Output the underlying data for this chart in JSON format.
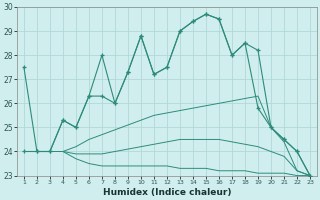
{
  "x": [
    1,
    2,
    3,
    4,
    5,
    6,
    7,
    8,
    9,
    10,
    11,
    12,
    13,
    14,
    15,
    16,
    17,
    18,
    19,
    20,
    21,
    22,
    23
  ],
  "line1": [
    27.5,
    24.0,
    24.0,
    25.3,
    25.0,
    26.3,
    28.0,
    26.0,
    27.3,
    28.8,
    27.2,
    27.5,
    29.0,
    29.4,
    29.7,
    29.5,
    28.0,
    28.5,
    28.2,
    25.0,
    24.5,
    24.0,
    23.0
  ],
  "line2": [
    24.0,
    24.0,
    24.0,
    25.3,
    25.0,
    26.3,
    26.3,
    26.0,
    27.3,
    28.8,
    27.2,
    27.5,
    29.0,
    29.4,
    29.7,
    29.5,
    28.0,
    28.5,
    25.8,
    25.0,
    24.5,
    24.0,
    23.0
  ],
  "fan1": [
    24.0,
    24.0,
    24.0,
    24.0,
    24.2,
    24.5,
    24.7,
    24.9,
    25.1,
    25.3,
    25.5,
    25.6,
    25.7,
    25.8,
    25.9,
    26.0,
    26.1,
    26.2,
    26.3,
    25.0,
    24.4,
    23.2,
    23.0
  ],
  "fan2": [
    24.0,
    24.0,
    24.0,
    24.0,
    23.9,
    23.9,
    23.9,
    24.0,
    24.1,
    24.2,
    24.3,
    24.4,
    24.5,
    24.5,
    24.5,
    24.5,
    24.4,
    24.3,
    24.2,
    24.0,
    23.8,
    23.2,
    23.0
  ],
  "fan3": [
    24.0,
    24.0,
    24.0,
    24.0,
    23.7,
    23.5,
    23.4,
    23.4,
    23.4,
    23.4,
    23.4,
    23.4,
    23.3,
    23.3,
    23.3,
    23.2,
    23.2,
    23.2,
    23.1,
    23.1,
    23.1,
    23.0,
    23.0
  ],
  "color": "#2e8b7a",
  "bg_color": "#d0eeee",
  "grid_color": "#b0d8d8",
  "xlabel": "Humidex (Indice chaleur)",
  "ylim": [
    23,
    30
  ],
  "xlim": [
    0.5,
    23.5
  ],
  "yticks": [
    23,
    24,
    25,
    26,
    27,
    28,
    29,
    30
  ],
  "xticks": [
    1,
    2,
    3,
    4,
    5,
    6,
    7,
    8,
    9,
    10,
    11,
    12,
    13,
    14,
    15,
    16,
    17,
    18,
    19,
    20,
    21,
    22,
    23
  ]
}
